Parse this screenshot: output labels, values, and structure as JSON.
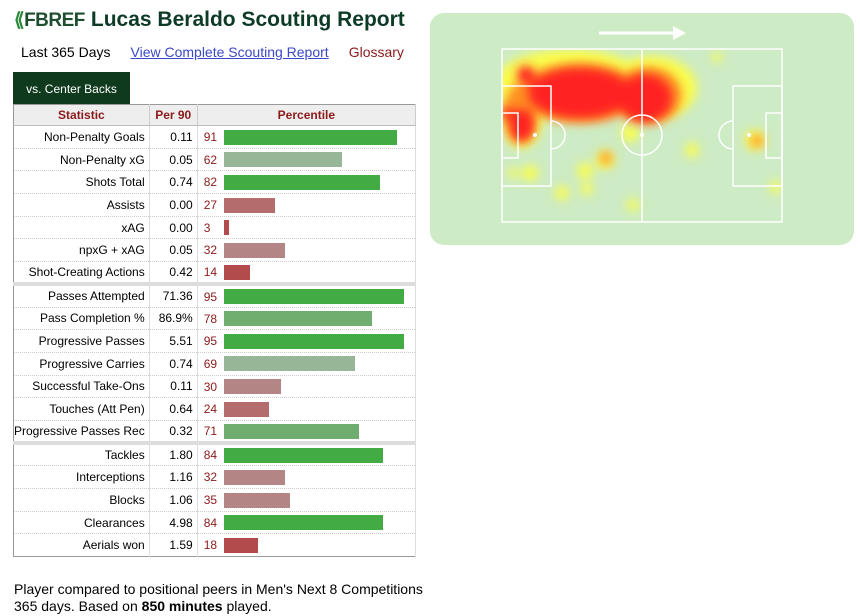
{
  "header": {
    "logo": "FBREF",
    "title": "Lucas Beraldo Scouting Report"
  },
  "subnav": {
    "period": "Last 365 Days",
    "report_link": "View Complete Scouting Report",
    "glossary": "Glossary"
  },
  "tab": "vs. Center Backs",
  "table": {
    "headers": [
      "Statistic",
      "Per 90",
      "Percentile"
    ],
    "sections": [
      [
        [
          "Non-Penalty Goals",
          "0.11",
          91
        ],
        [
          "Non-Penalty xG",
          "0.05",
          62
        ],
        [
          "Shots Total",
          "0.74",
          82
        ],
        [
          "Assists",
          "0.00",
          27
        ],
        [
          "xAG",
          "0.00",
          3
        ],
        [
          "npxG + xAG",
          "0.05",
          32
        ],
        [
          "Shot-Creating Actions",
          "0.42",
          14
        ]
      ],
      [
        [
          "Passes Attempted",
          "71.36",
          95
        ],
        [
          "Pass Completion %",
          "86.9%",
          78
        ],
        [
          "Progressive Passes",
          "5.51",
          95
        ],
        [
          "Progressive Carries",
          "0.74",
          69
        ],
        [
          "Successful Take-Ons",
          "0.11",
          30
        ],
        [
          "Touches (Att Pen)",
          "0.64",
          24
        ],
        [
          "Progressive Passes Rec",
          "0.32",
          71
        ]
      ],
      [
        [
          "Tackles",
          "1.80",
          84
        ],
        [
          "Interceptions",
          "1.16",
          32
        ],
        [
          "Blocks",
          "1.06",
          35
        ],
        [
          "Clearances",
          "4.98",
          84
        ],
        [
          "Aerials won",
          "1.59",
          18
        ]
      ]
    ]
  },
  "footer": {
    "line1": "Player compared to positional peers in Men's Next 8 Competitions",
    "line2a": "365 days. Based on ",
    "minutes": "850 minutes",
    "line2b": " played."
  },
  "heatmap": {
    "direction": "left-to-right"
  }
}
